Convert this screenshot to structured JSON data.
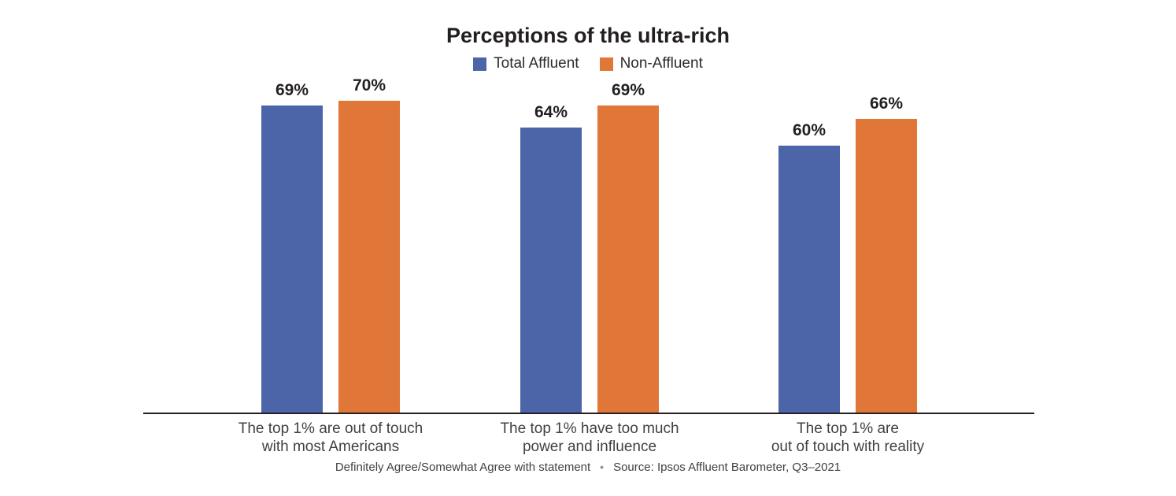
{
  "footer": {
    "note": "Definitely Agree/Somewhat Agree with statement",
    "separator": "•",
    "source": "Source: Ipsos Affluent Barometer, Q3–2021"
  },
  "chart_data": {
    "type": "bar",
    "title": "Perceptions of the ultra-rich",
    "categories": [
      "The top 1% are out of touch\nwith most Americans",
      "The top 1% have too much\npower and influence",
      "The top 1% are\nout of touch with reality"
    ],
    "series": [
      {
        "name": "Total Affluent",
        "color": "#4C65A8",
        "values": [
          69,
          64,
          60
        ]
      },
      {
        "name": "Non-Affluent",
        "color": "#E07637",
        "values": [
          70,
          69,
          66
        ]
      }
    ],
    "value_suffix": "%",
    "value_labels": true,
    "ylim": [
      0,
      100
    ],
    "grid": false,
    "legend_position": "top",
    "axis_line_color": "#231f20",
    "xlabel": "",
    "ylabel": ""
  }
}
